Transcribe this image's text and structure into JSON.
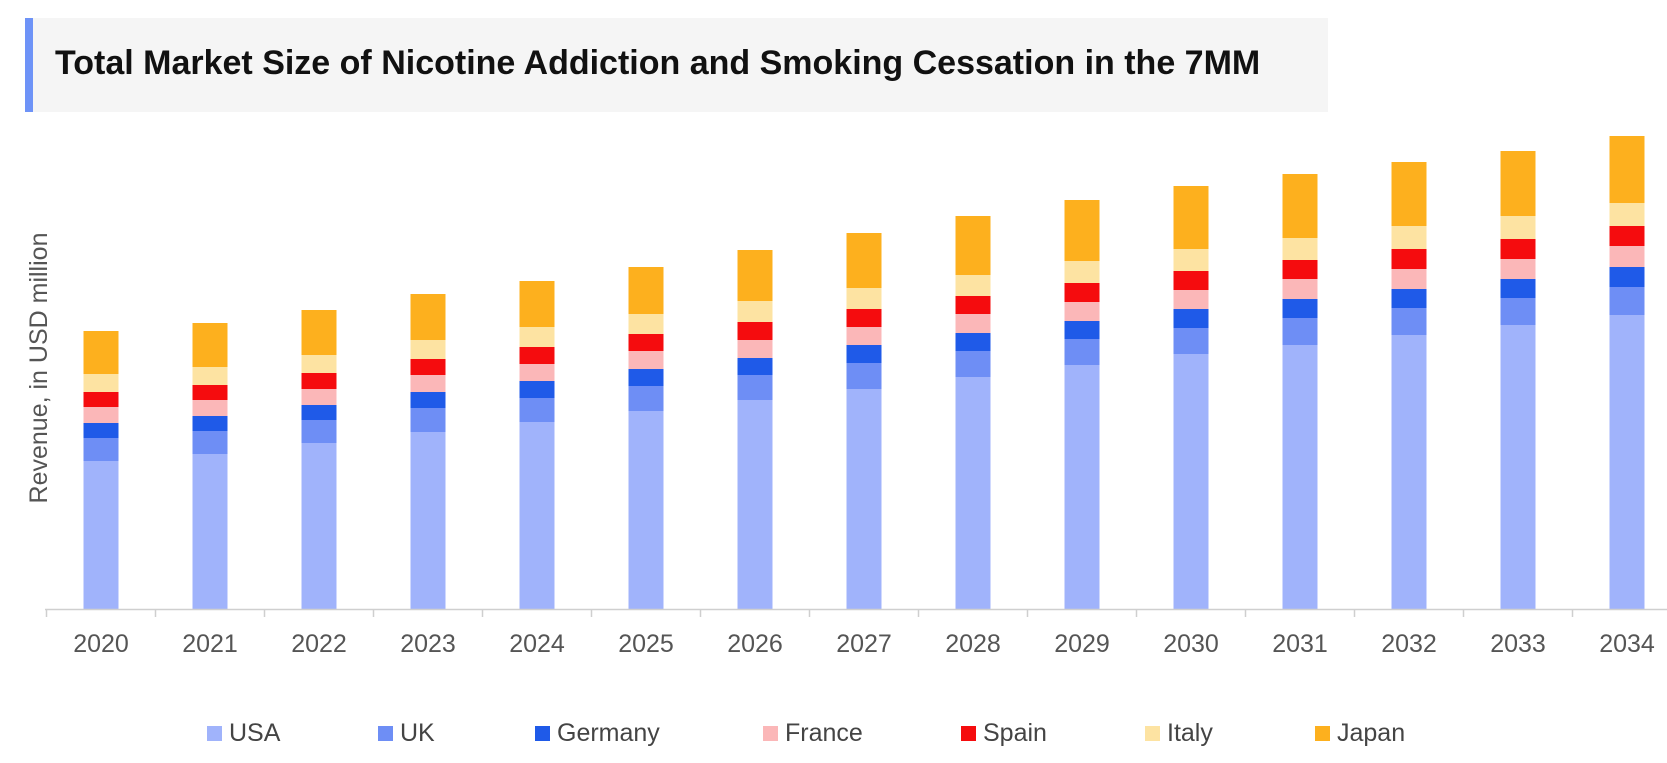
{
  "chart_data": {
    "type": "bar",
    "stacked": true,
    "title": "Total Market Size of Nicotine Addiction and Smoking Cessation in the 7MM",
    "xlabel": "",
    "ylabel": "Revenue, in USD million",
    "grid": false,
    "legend_position": "bottom",
    "categories": [
      "2020",
      "2021",
      "2022",
      "2023",
      "2024",
      "2025",
      "2026",
      "2027",
      "2028",
      "2029",
      "2030",
      "2031",
      "2032",
      "2033",
      "2034"
    ],
    "series": [
      {
        "name": "USA",
        "color": "#a0b3fb",
        "values": [
          148,
          155,
          166,
          177,
          187,
          198,
          209,
          220,
          232,
          244,
          255,
          264,
          274,
          284,
          294
        ]
      },
      {
        "name": "UK",
        "color": "#6e8ef5",
        "values": [
          23,
          23,
          23,
          24,
          24,
          25,
          25,
          26,
          26,
          26,
          26,
          27,
          27,
          27,
          28
        ]
      },
      {
        "name": "Germany",
        "color": "#1f5ae8",
        "values": [
          15,
          15,
          15,
          16,
          17,
          17,
          17,
          18,
          18,
          18,
          19,
          19,
          19,
          19,
          20
        ]
      },
      {
        "name": "France",
        "color": "#fbb7b8",
        "values": [
          16,
          16,
          16,
          17,
          17,
          18,
          18,
          18,
          19,
          19,
          19,
          20,
          20,
          20,
          21
        ]
      },
      {
        "name": "Spain",
        "color": "#f50c0e",
        "values": [
          15,
          15,
          16,
          16,
          17,
          17,
          18,
          18,
          18,
          19,
          19,
          19,
          20,
          20,
          20
        ]
      },
      {
        "name": "Italy",
        "color": "#fde3a2",
        "values": [
          18,
          18,
          18,
          19,
          20,
          20,
          21,
          21,
          21,
          22,
          22,
          22,
          23,
          23,
          23
        ]
      },
      {
        "name": "Japan",
        "color": "#fdb01e",
        "values": [
          43,
          44,
          45,
          46,
          46,
          47,
          51,
          55,
          59,
          61,
          63,
          64,
          64,
          65,
          67
        ]
      }
    ]
  }
}
